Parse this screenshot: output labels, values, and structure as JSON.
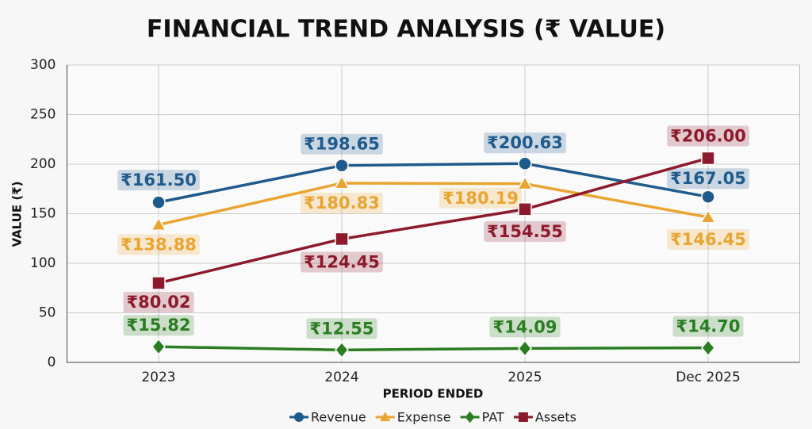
{
  "chart_data": {
    "type": "line",
    "title": "FINANCIAL TREND ANALYSIS (₹ VALUE)",
    "x_label": "PERIOD ENDED",
    "y_label": "VALUE (₹)",
    "categories": [
      "2023",
      "2024",
      "2025",
      "Dec 2025"
    ],
    "series": [
      {
        "name": "Revenue",
        "color": "#1f5a8c",
        "marker": "circle",
        "values": [
          161.5,
          198.65,
          200.63,
          167.05
        ],
        "value_labels": [
          "₹161.50",
          "₹198.65",
          "₹200.63",
          "₹167.05"
        ]
      },
      {
        "name": "Expense",
        "color": "#e9a531",
        "marker": "triangle",
        "values": [
          138.88,
          180.83,
          180.19,
          146.45
        ],
        "value_labels": [
          "₹138.88",
          "₹180.83",
          "₹180.19",
          "₹146.45"
        ]
      },
      {
        "name": "PAT",
        "color": "#2a7d21",
        "marker": "diamond",
        "values": [
          15.82,
          12.55,
          14.09,
          14.7
        ],
        "value_labels": [
          "₹15.82",
          "₹12.55",
          "₹14.09",
          "₹14.70"
        ]
      },
      {
        "name": "Assets",
        "color": "#8c1a2c",
        "marker": "square",
        "values": [
          80.02,
          124.45,
          154.55,
          206.0
        ],
        "value_labels": [
          "₹80.02",
          "₹124.45",
          "₹154.55",
          "₹206.00"
        ]
      }
    ],
    "ylim": [
      0,
      300
    ],
    "yticks": [
      0,
      50,
      100,
      150,
      200,
      250,
      300
    ],
    "grid": true,
    "legend": "bottom"
  }
}
